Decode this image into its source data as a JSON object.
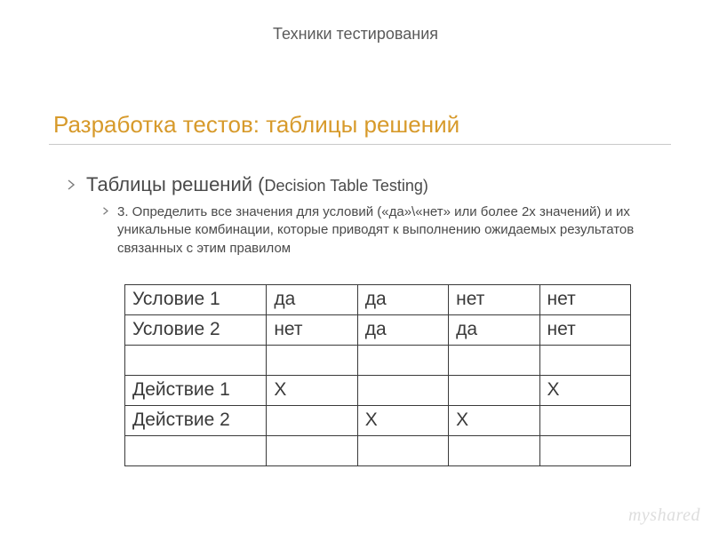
{
  "topic": "Техники тестирования",
  "title": "Разработка тестов: таблицы решений",
  "bullet1": {
    "main": "Таблицы решений (",
    "sub": "Decision Table Testing)"
  },
  "bullet2": "3. Определить все значения для условий («да»\\«нет» или более 2х значений) и их уникальные комбинации, которые приводят к выполнению ожидаемых результатов связанных с этим правилом",
  "table": {
    "type": "table",
    "border_color": "#3a3a3a",
    "text_color": "#3a3a3a",
    "font_size_pt": 16,
    "col_widths_pct": [
      28,
      18,
      18,
      18,
      18
    ],
    "rows": [
      [
        "Условие 1",
        "да",
        "да",
        "нет",
        "нет"
      ],
      [
        "Условие 2",
        "нет",
        "да",
        "да",
        "нет"
      ],
      [
        "",
        "",
        "",
        "",
        ""
      ],
      [
        "Действие 1",
        "Х",
        "",
        "",
        "Х"
      ],
      [
        "Действие 2",
        "",
        "Х",
        "Х",
        ""
      ],
      [
        "",
        "",
        "",
        "",
        ""
      ]
    ]
  },
  "chevron": {
    "stroke": "#7a7a7a",
    "size_l1": 12,
    "size_l2": 9
  },
  "colors": {
    "title": "#d79a2b",
    "body_text": "#4a4a4a",
    "rule": "#c9c9c9",
    "background": "#ffffff"
  },
  "watermark": "myshared"
}
